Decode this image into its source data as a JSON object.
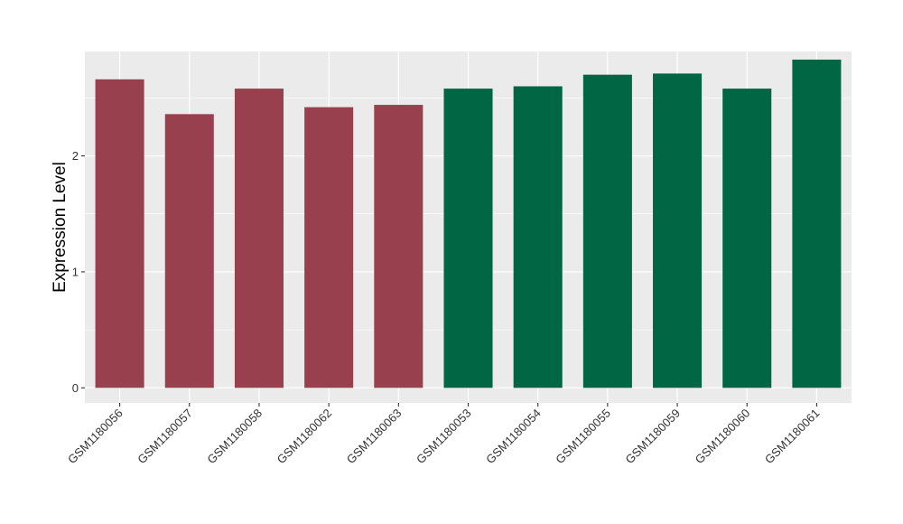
{
  "chart_data": {
    "type": "bar",
    "title": "",
    "xlabel": "",
    "ylabel": "Expression Level",
    "ylim": [
      -0.13,
      2.9
    ],
    "y_ticks": [
      0,
      1,
      2
    ],
    "grid": true,
    "legend": "none",
    "panel_color": "#EBEBEB",
    "categories": [
      "GSM1180056",
      "GSM1180057",
      "GSM1180058",
      "GSM1180062",
      "GSM1180063",
      "GSM1180053",
      "GSM1180054",
      "GSM1180055",
      "GSM1180059",
      "GSM1180060",
      "GSM1180061"
    ],
    "values": [
      2.66,
      2.36,
      2.58,
      2.42,
      2.44,
      2.58,
      2.6,
      2.7,
      2.71,
      2.58,
      2.83
    ],
    "bar_colors": [
      "#98404E",
      "#98404E",
      "#98404E",
      "#98404E",
      "#98404E",
      "#006644",
      "#006644",
      "#006644",
      "#006644",
      "#006644",
      "#006644"
    ]
  }
}
